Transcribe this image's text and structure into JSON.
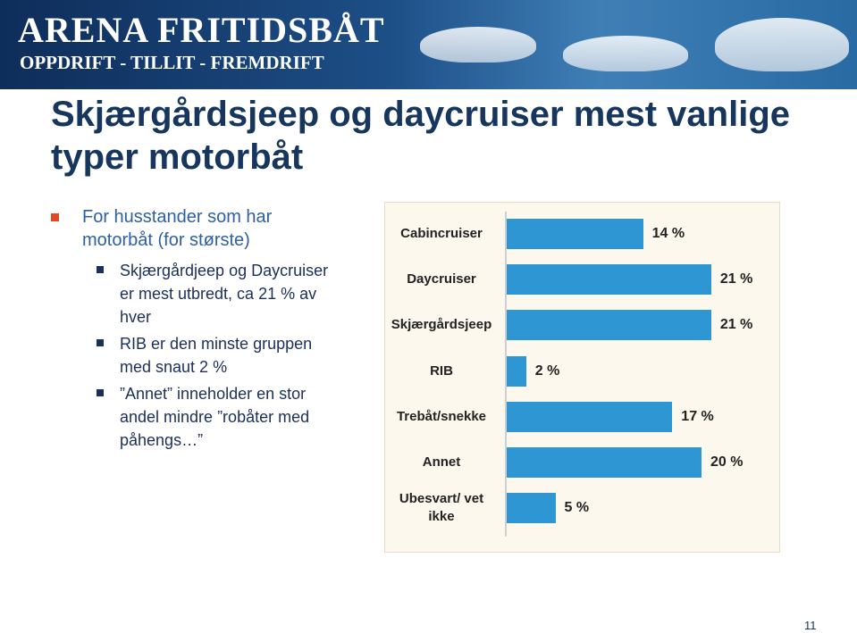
{
  "header": {
    "brand": "ARENA FRITIDSBÅT",
    "tagline": "OPPDRIFT - TILLIT - FREMDRIFT"
  },
  "title": "Skjærgårdsjeep og daycruiser mest vanlige typer motorbåt",
  "bullets": [
    {
      "text": "For husstander som har motorbåt (for største)",
      "sub": [
        "Skjærgårdjeep og Daycruiser er mest utbredt, ca 21 % av hver",
        "RIB er den minste gruppen med snaut 2 %",
        "”Annet” inneholder en stor andel mindre ”robåter med påhengs…”"
      ]
    }
  ],
  "chart_data": {
    "type": "barh",
    "categories": [
      "Cabincruiser",
      "Daycruiser",
      "Skjærgårdsjeep",
      "RIB",
      "Trebåt/snekke",
      "Annet",
      "Ubesvart/ vet ikke"
    ],
    "values": [
      14,
      21,
      21,
      2,
      17,
      20,
      5
    ],
    "value_labels": [
      "14 %",
      "21 %",
      "21 %",
      "2 %",
      "17 %",
      "20 %",
      "5 %"
    ],
    "color": "#2f96d4"
  },
  "page_number": "11"
}
